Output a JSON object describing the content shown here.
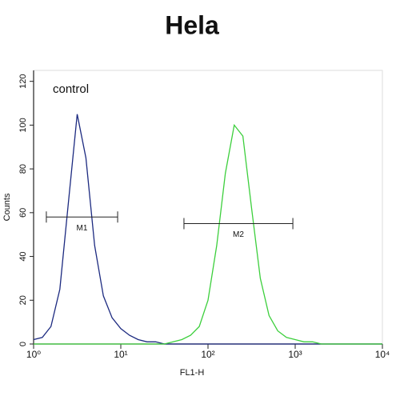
{
  "chart_data": {
    "type": "line",
    "title": "Hela",
    "xlabel": "FL1-H",
    "ylabel": "Counts",
    "annotation": "control",
    "xscale": "log",
    "xlim": [
      1,
      10000
    ],
    "ylim": [
      0,
      125
    ],
    "xticks": [
      {
        "value": 1,
        "label": "10⁰"
      },
      {
        "value": 10,
        "label": "10¹"
      },
      {
        "value": 100,
        "label": "10²"
      },
      {
        "value": 1000,
        "label": "10³"
      },
      {
        "value": 10000,
        "label": "10⁴"
      }
    ],
    "yticks": [
      0,
      20,
      40,
      60,
      80,
      100,
      120
    ],
    "x": [
      1,
      1.26,
      1.58,
      2,
      2.51,
      3.16,
      3.98,
      5.01,
      6.31,
      7.94,
      10,
      12.6,
      15.8,
      20,
      25.1,
      31.6,
      39.8,
      50.1,
      63.1,
      79.4,
      100,
      126,
      158,
      200,
      251,
      316,
      398,
      501,
      631,
      794,
      1000,
      1260,
      1580,
      2000,
      2510,
      3160,
      3980,
      5010,
      6310,
      7940,
      10000
    ],
    "series": [
      {
        "name": "control",
        "color": "#1c2a80",
        "values": [
          2,
          3,
          8,
          25,
          65,
          105,
          85,
          45,
          22,
          12,
          7,
          4,
          2,
          1,
          1,
          0,
          0,
          0,
          0,
          0,
          0,
          0,
          0,
          0,
          0,
          0,
          0,
          0,
          0,
          0,
          0,
          0,
          0,
          0,
          0,
          0,
          0,
          0,
          0,
          0,
          0
        ]
      },
      {
        "name": "Hela",
        "color": "#3ccf3c",
        "values": [
          0,
          0,
          0,
          0,
          0,
          0,
          0,
          0,
          0,
          0,
          0,
          0,
          0,
          0,
          0,
          0,
          1,
          2,
          4,
          8,
          20,
          45,
          78,
          100,
          95,
          62,
          30,
          13,
          6,
          3,
          2,
          1,
          1,
          0,
          0,
          0,
          0,
          0,
          0,
          0,
          0
        ]
      }
    ],
    "markers": [
      {
        "label": "M1",
        "range": [
          1.4,
          9.2
        ],
        "y": 58
      },
      {
        "label": "M2",
        "range": [
          53,
          940
        ],
        "y": 55
      }
    ]
  }
}
